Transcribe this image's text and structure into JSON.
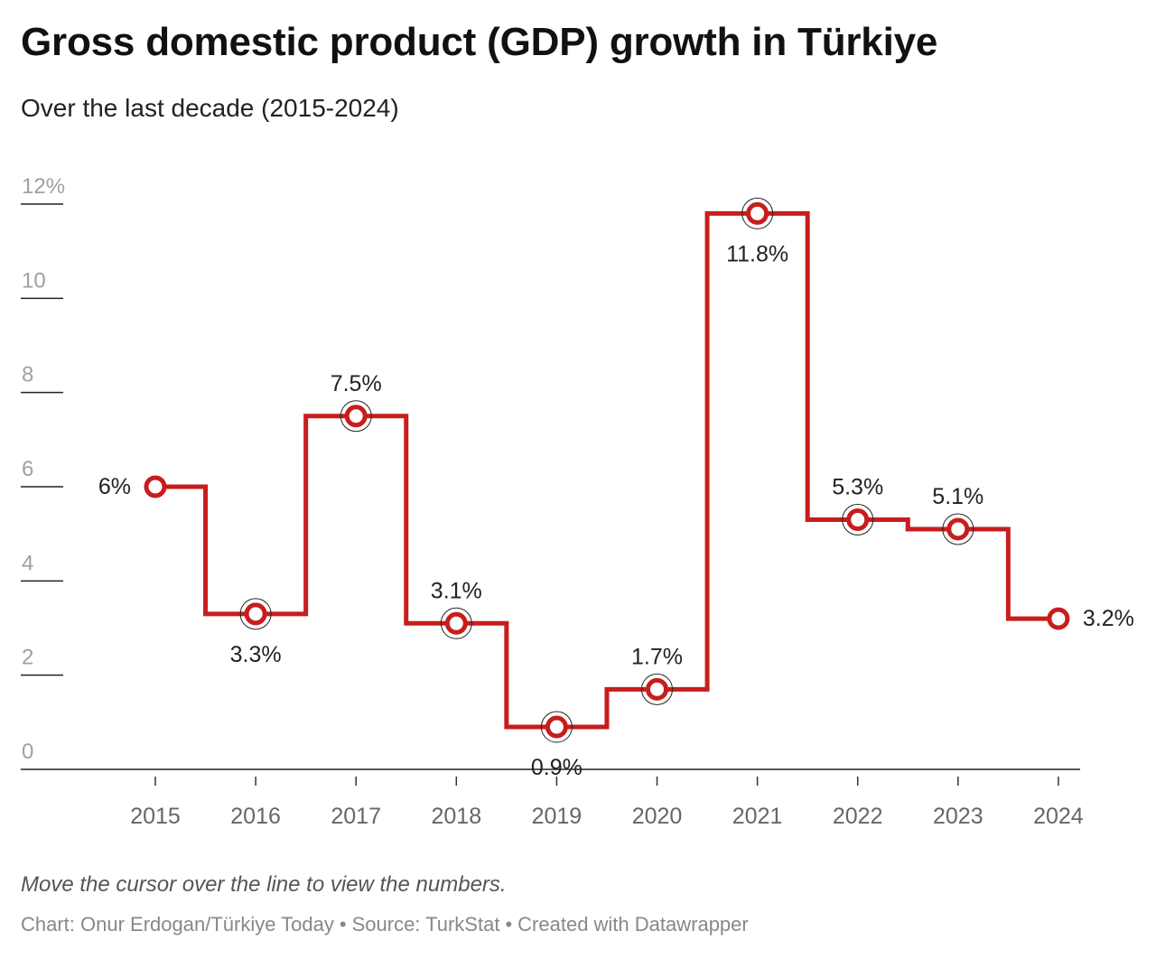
{
  "chart_data": {
    "type": "line",
    "style": "step",
    "title": "Gross domestic product (GDP) growth in Türkiye",
    "subtitle": "Over the last decade (2015-2024)",
    "x": [
      "2015",
      "2016",
      "2017",
      "2018",
      "2019",
      "2020",
      "2021",
      "2022",
      "2023",
      "2024"
    ],
    "values": [
      6,
      3.3,
      7.5,
      3.1,
      0.9,
      1.7,
      11.8,
      5.3,
      5.1,
      3.2
    ],
    "data_labels": [
      "6%",
      "3.3%",
      "7.5%",
      "3.1%",
      "0.9%",
      "1.7%",
      "11.8%",
      "5.3%",
      "5.1%",
      "3.2%"
    ],
    "ylim": [
      0,
      12
    ],
    "yticks": [
      0,
      2,
      4,
      6,
      8,
      10,
      12
    ],
    "ytick_labels": [
      "0",
      "2",
      "4",
      "6",
      "8",
      "10",
      "12%"
    ],
    "xlabel": "",
    "ylabel": "",
    "grid": false,
    "legend": "none",
    "line_color": "#c71e1d"
  },
  "notes": "Move the cursor over the line to view the numbers.",
  "footer": {
    "chart_credit": "Chart: Onur Erdogan/Türkiye Today",
    "source": "Source: TurkStat",
    "tool": "Created with Datawrapper",
    "separator": "•"
  }
}
